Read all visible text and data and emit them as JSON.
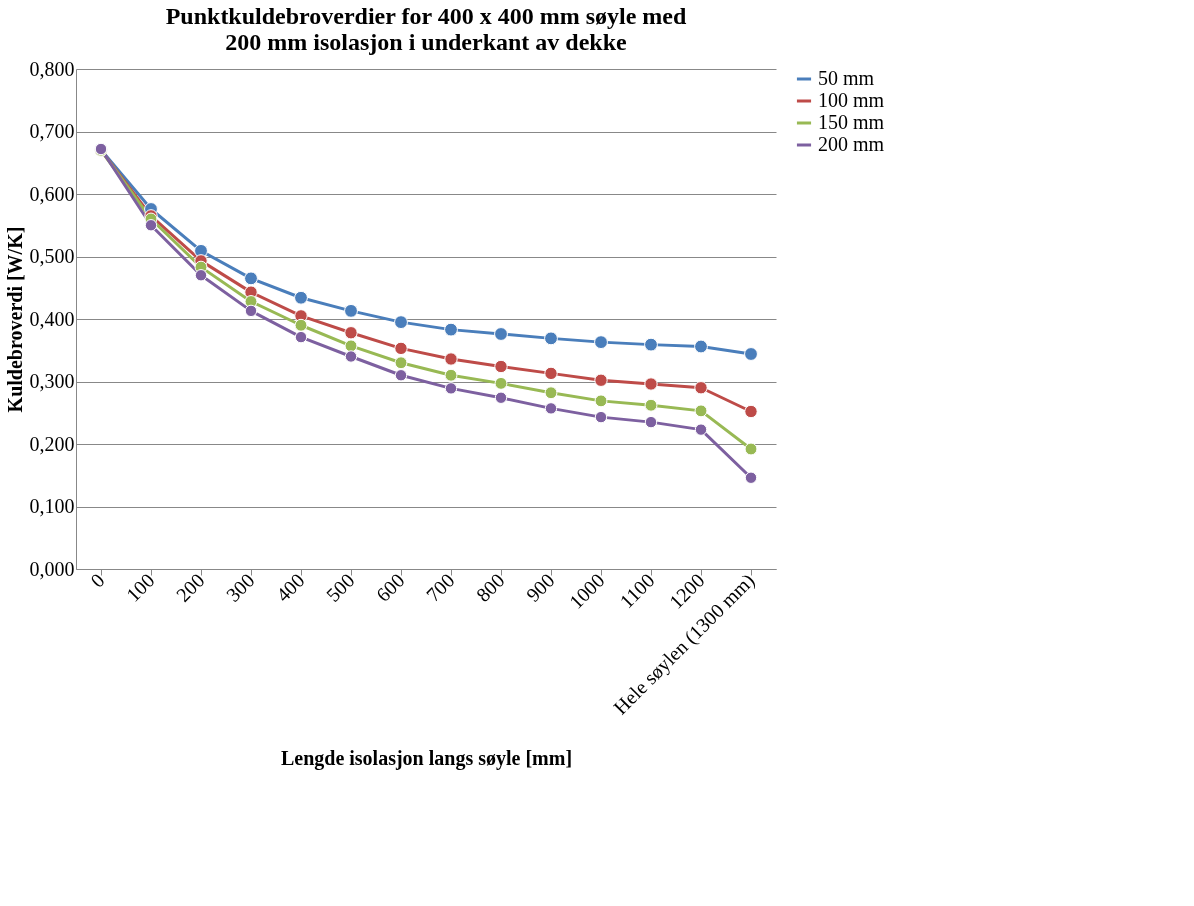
{
  "chart_data": {
    "type": "line",
    "title": "Punktkuldebroverdier for 400 x 400 mm søyle med 200 mm isolasjon i underkant av dekke",
    "xlabel": "Lengde isolasjon langs søyle [mm]",
    "ylabel": "Kuldebroverdi [W/K]",
    "categories": [
      "0",
      "100",
      "200",
      "300",
      "400",
      "500",
      "600",
      "700",
      "800",
      "900",
      "1000",
      "1100",
      "1200",
      "Hele søylen (1300 mm)"
    ],
    "series": [
      {
        "name": "50 mm",
        "color": "#4a7ebb",
        "values": [
          0.671,
          0.576,
          0.509,
          0.465,
          0.434,
          0.413,
          0.395,
          0.383,
          0.376,
          0.369,
          0.363,
          0.359,
          0.356,
          0.344
        ]
      },
      {
        "name": "100 mm",
        "color": "#be4b48",
        "values": [
          0.67,
          0.565,
          0.493,
          0.443,
          0.405,
          0.378,
          0.353,
          0.336,
          0.324,
          0.313,
          0.302,
          0.296,
          0.29,
          0.252
        ]
      },
      {
        "name": "150 mm",
        "color": "#98b954",
        "values": [
          0.67,
          0.56,
          0.483,
          0.428,
          0.39,
          0.357,
          0.33,
          0.31,
          0.297,
          0.282,
          0.269,
          0.262,
          0.253,
          0.192
        ]
      },
      {
        "name": "200 mm",
        "color": "#7d60a0",
        "values": [
          0.672,
          0.55,
          0.47,
          0.413,
          0.371,
          0.34,
          0.31,
          0.289,
          0.274,
          0.257,
          0.243,
          0.235,
          0.223,
          0.146
        ]
      }
    ],
    "ylim": [
      0,
      0.8
    ],
    "yticks": [
      {
        "value": 0,
        "label": "0,000"
      },
      {
        "value": 0.1,
        "label": "0,100"
      },
      {
        "value": 0.2,
        "label": "0,200"
      },
      {
        "value": 0.3,
        "label": "0,300"
      },
      {
        "value": 0.4,
        "label": "0,400"
      },
      {
        "value": 0.5,
        "label": "0,500"
      },
      {
        "value": 0.6,
        "label": "0,600"
      },
      {
        "value": 0.7,
        "label": "0,700"
      },
      {
        "value": 0.8,
        "label": "0,800"
      }
    ],
    "grid": "y",
    "legend": "right",
    "marker": "circle",
    "line_style": "solid"
  }
}
